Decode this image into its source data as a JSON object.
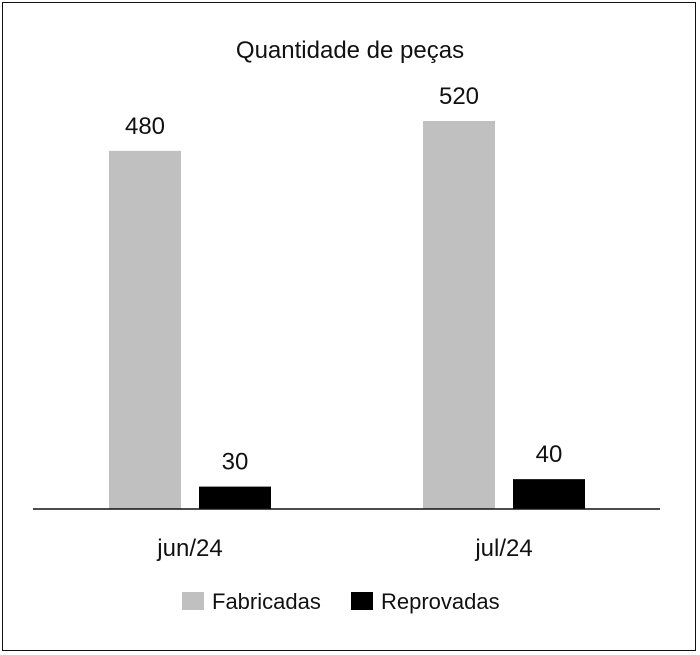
{
  "chart_data": {
    "type": "bar",
    "title": "Quantidade de peças",
    "categories": [
      "jun/24",
      "jul/24"
    ],
    "series": [
      {
        "name": "Fabricadas",
        "values": [
          480,
          520
        ],
        "color": "#c0c0c0"
      },
      {
        "name": "Reprovadas",
        "values": [
          30,
          40
        ],
        "color": "#000000"
      }
    ],
    "data_labels": [
      [
        "480",
        "520"
      ],
      [
        "30",
        "40"
      ]
    ],
    "legend_position": "bottom",
    "grid": false,
    "y_axis_visible": false,
    "ylim": [
      0,
      520
    ]
  }
}
